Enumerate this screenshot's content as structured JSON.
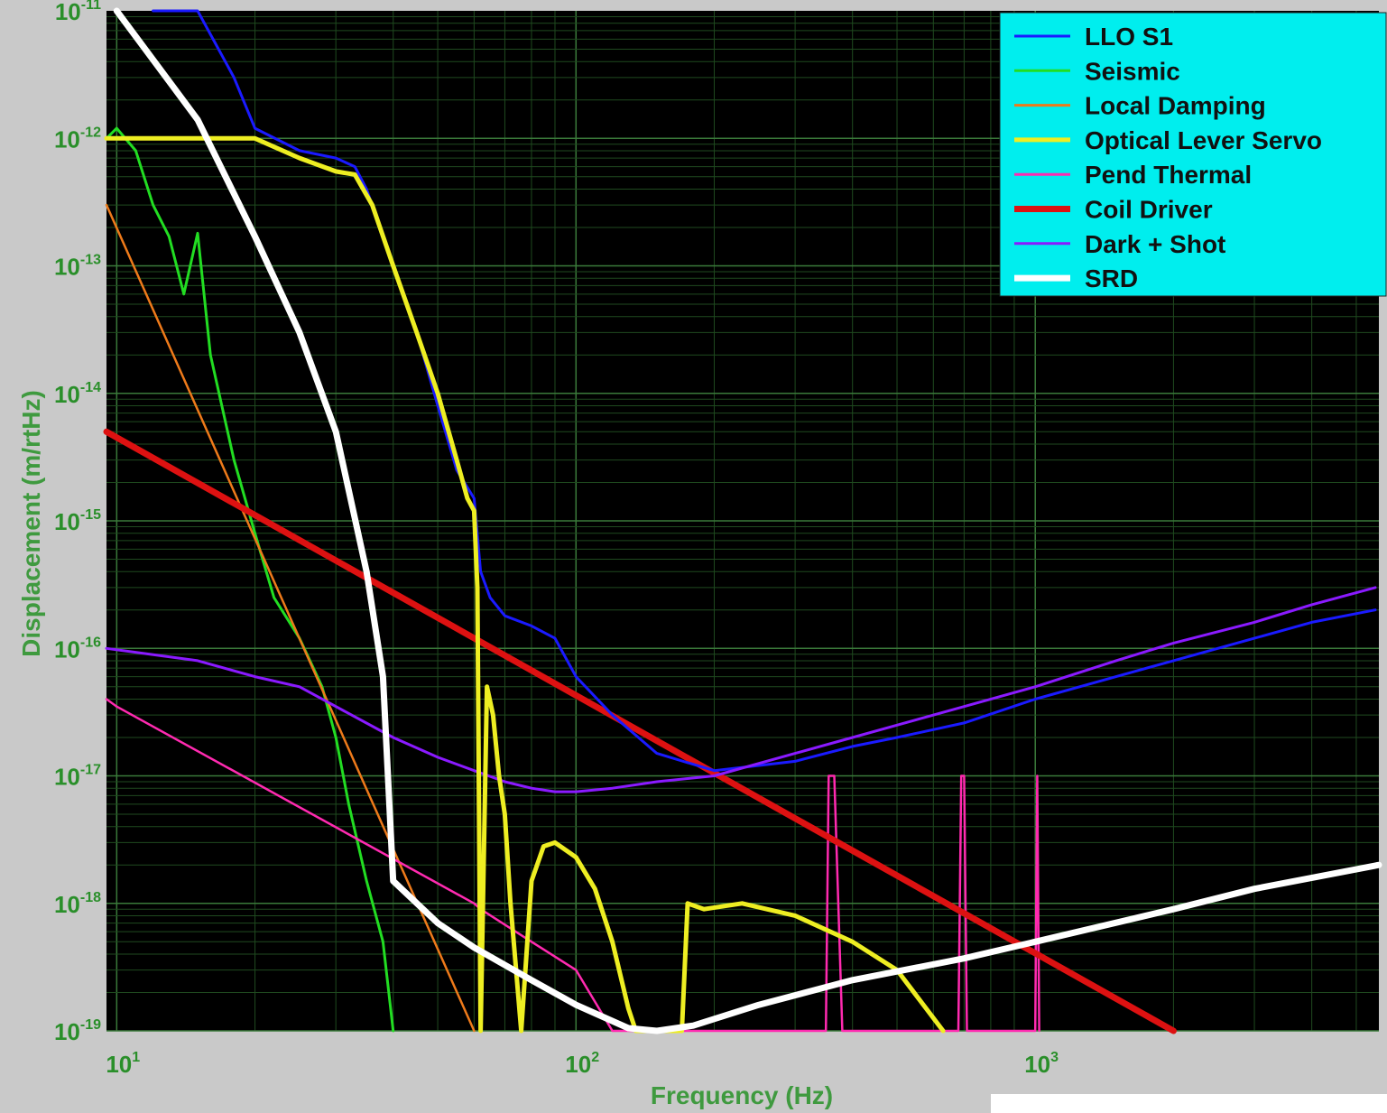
{
  "chart_data": {
    "type": "line",
    "xlabel": "Frequency (Hz)",
    "ylabel": "Displacement (m/rtHz)",
    "x_scale": "log",
    "y_scale": "log",
    "xlim": [
      9.5,
      5600
    ],
    "ylim": [
      1e-19,
      1e-11
    ],
    "x_ticks": [
      {
        "base": "10",
        "exp": "1",
        "value": 10
      },
      {
        "base": "10",
        "exp": "2",
        "value": 100
      },
      {
        "base": "10",
        "exp": "3",
        "value": 1000
      }
    ],
    "y_ticks": [
      {
        "base": "10",
        "exp": "-11",
        "value": 1e-11
      },
      {
        "base": "10",
        "exp": "-12",
        "value": 1e-12
      },
      {
        "base": "10",
        "exp": "-13",
        "value": 1e-13
      },
      {
        "base": "10",
        "exp": "-14",
        "value": 1e-14
      },
      {
        "base": "10",
        "exp": "-15",
        "value": 1e-15
      },
      {
        "base": "10",
        "exp": "-16",
        "value": 1e-16
      },
      {
        "base": "10",
        "exp": "-17",
        "value": 1e-17
      },
      {
        "base": "10",
        "exp": "-18",
        "value": 1e-18
      },
      {
        "base": "10",
        "exp": "-19",
        "value": 1e-19
      }
    ],
    "grid": "major and minor",
    "legend_position": "top-right",
    "series": [
      {
        "name": "LLO S1",
        "color": "#1a1aff",
        "width": 3,
        "x": [
          12,
          15,
          18,
          20,
          25,
          30,
          33,
          35,
          40,
          45,
          50,
          55,
          60,
          62,
          65,
          70,
          80,
          90,
          100,
          120,
          150,
          200,
          300,
          400,
          500,
          700,
          1000,
          1500,
          2000,
          3000,
          4000,
          5500
        ],
        "y": [
          1.3e-11,
          1.2e-11,
          3e-12,
          1.2e-12,
          8e-13,
          7e-13,
          6e-13,
          4e-13,
          1e-13,
          3e-14,
          8e-15,
          2.5e-15,
          1.5e-15,
          4e-16,
          2.5e-16,
          1.8e-16,
          1.5e-16,
          1.2e-16,
          6e-17,
          3e-17,
          1.5e-17,
          1.1e-17,
          1.3e-17,
          1.7e-17,
          2e-17,
          2.6e-17,
          4e-17,
          6e-17,
          8e-17,
          1.2e-16,
          1.6e-16,
          2e-16
        ]
      },
      {
        "name": "Seismic",
        "color": "#22dd22",
        "width": 3,
        "x": [
          9.5,
          10,
          11,
          12,
          13,
          14,
          15,
          16,
          18,
          20,
          22,
          25,
          28,
          30,
          32,
          35,
          38,
          40
        ],
        "y": [
          1e-12,
          1.2e-12,
          8e-13,
          3e-13,
          1.7e-13,
          6e-14,
          1.8e-13,
          2e-14,
          3e-15,
          8e-16,
          2.5e-16,
          1.2e-16,
          5e-17,
          2e-17,
          6e-18,
          1.5e-18,
          5e-19,
          1e-19
        ]
      },
      {
        "name": "Local Damping",
        "color": "#ee7a1a",
        "width": 2.5,
        "x": [
          9.5,
          60
        ],
        "y": [
          3e-13,
          1e-19
        ]
      },
      {
        "name": "Optical Lever Servo",
        "color": "#eeee22",
        "width": 5,
        "x": [
          9.5,
          20,
          25,
          30,
          33,
          36,
          40,
          45,
          50,
          55,
          58,
          60,
          61,
          62,
          64,
          66,
          68,
          70,
          72,
          76,
          80,
          85,
          90,
          100,
          110,
          120,
          130,
          135,
          170,
          175,
          190,
          230,
          300,
          400,
          500,
          630
        ],
        "y": [
          1e-12,
          1e-12,
          7e-13,
          5.5e-13,
          5.2e-13,
          3e-13,
          1e-13,
          3e-14,
          1e-14,
          3e-15,
          1.5e-15,
          1.2e-15,
          3e-16,
          1e-19,
          5e-17,
          3e-17,
          1e-17,
          5e-18,
          1e-18,
          1e-19,
          1.5e-18,
          2.8e-18,
          3e-18,
          2.3e-18,
          1.3e-18,
          5e-19,
          1.5e-19,
          1e-19,
          1e-19,
          1e-18,
          9e-19,
          1e-18,
          8e-19,
          5e-19,
          3e-19,
          1e-19
        ]
      },
      {
        "name": "Pend Thermal",
        "color": "#ff2ab0",
        "width": 2.5,
        "x": [
          9.5,
          10,
          60,
          62,
          80,
          100,
          120,
          150,
          200,
          300,
          350,
          355,
          365,
          380,
          600,
          680,
          690,
          700,
          710,
          900,
          1000,
          1010,
          1020
        ],
        "y": [
          4e-17,
          3.5e-17,
          1e-18,
          9e-19,
          5e-19,
          3e-19,
          1e-19,
          1e-19,
          1e-19,
          1e-19,
          1e-19,
          1e-17,
          1e-17,
          1e-19,
          1e-19,
          1e-19,
          1e-17,
          1e-17,
          1e-19,
          1e-19,
          1e-19,
          1e-17,
          1e-19
        ]
      },
      {
        "name": "Coil Driver",
        "color": "#dd1111",
        "width": 7,
        "x": [
          9.5,
          2000
        ],
        "y": [
          5e-15,
          1e-19
        ]
      },
      {
        "name": "Dark + Shot",
        "color": "#8a1aff",
        "width": 3,
        "x": [
          9.5,
          15,
          20,
          25,
          30,
          40,
          50,
          60,
          70,
          80,
          90,
          100,
          120,
          150,
          200,
          300,
          400,
          500,
          700,
          1000,
          1500,
          2000,
          3000,
          4000,
          5500
        ],
        "y": [
          1e-16,
          8e-17,
          6e-17,
          5e-17,
          3.5e-17,
          2e-17,
          1.4e-17,
          1.1e-17,
          9e-18,
          8e-18,
          7.5e-18,
          7.5e-18,
          8e-18,
          9e-18,
          1e-17,
          1.5e-17,
          2e-17,
          2.5e-17,
          3.5e-17,
          5e-17,
          8e-17,
          1.1e-16,
          1.6e-16,
          2.2e-16,
          3e-16
        ]
      },
      {
        "name": "SRD",
        "color": "#ffffff",
        "width": 7,
        "x": [
          10,
          15,
          20,
          25,
          30,
          35,
          38,
          40,
          50,
          60,
          80,
          100,
          130,
          150,
          180,
          250,
          400,
          700,
          1000,
          2000,
          3000,
          5600
        ],
        "y": [
          2e-11,
          1.4e-12,
          1.7e-13,
          3e-14,
          5e-15,
          4e-16,
          6e-17,
          1.5e-18,
          7e-19,
          4.5e-19,
          2.5e-19,
          1.6e-19,
          1.05e-19,
          1e-19,
          1.1e-19,
          1.6e-19,
          2.5e-19,
          3.7e-19,
          5e-19,
          9e-19,
          1.3e-18,
          2e-18
        ]
      }
    ]
  }
}
